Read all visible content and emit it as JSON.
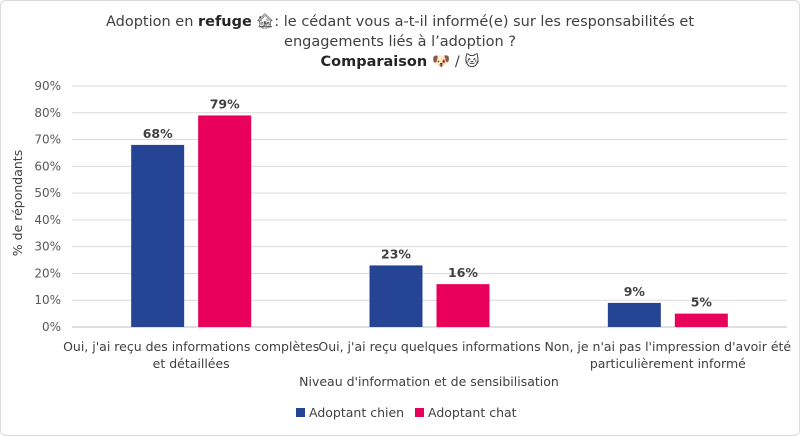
{
  "chart_data": {
    "type": "bar",
    "title": {
      "line1_prefix": "Adoption en ",
      "line1_bold": "refuge",
      "line1_emoji": "🏚",
      "line1_suffix": ": le cédant vous a-t-il informé(e) sur les responsabilités et",
      "line2": "engagements liés à l’adoption ?",
      "line3_bold": "Comparaison",
      "line3_emoji": "🐶 / 🐱"
    },
    "xlabel": "Niveau d'information et de sensibilisation",
    "ylabel": "% de répondants",
    "ylim": [
      0,
      90
    ],
    "yticks": [
      "0%",
      "10%",
      "20%",
      "30%",
      "40%",
      "50%",
      "60%",
      "70%",
      "80%",
      "90%"
    ],
    "categories": [
      [
        "Oui, j'ai reçu des informations complètes",
        "et détaillées"
      ],
      [
        "Oui, j'ai reçu quelques informations"
      ],
      [
        "Non, je n'ai pas l'impression d'avoir été",
        "particulièrement informé"
      ]
    ],
    "series": [
      {
        "name": "Adoptant chien",
        "color": "#264494",
        "values": [
          68,
          23,
          9
        ],
        "labels": [
          "68%",
          "23%",
          "9%"
        ]
      },
      {
        "name": "Adoptant chat",
        "color": "#e8005a",
        "values": [
          79,
          16,
          5
        ],
        "labels": [
          "79%",
          "16%",
          "5%"
        ]
      }
    ],
    "legend_position": "bottom",
    "grid": true
  }
}
